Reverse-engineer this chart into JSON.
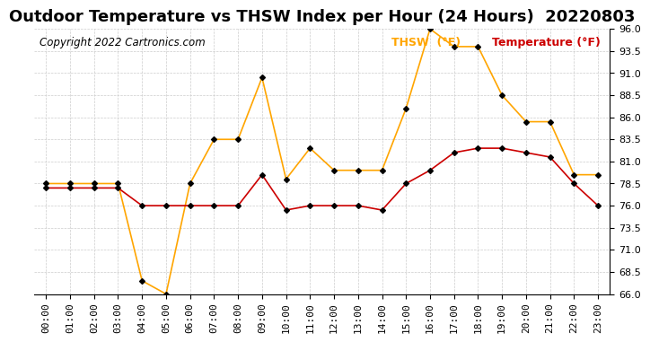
{
  "title": "Outdoor Temperature vs THSW Index per Hour (24 Hours)  20220803",
  "copyright": "Copyright 2022 Cartronics.com",
  "legend_thsw": "THSW  (°F)",
  "legend_temp": "Temperature (°F)",
  "hours": [
    "00:00",
    "01:00",
    "02:00",
    "03:00",
    "04:00",
    "05:00",
    "06:00",
    "07:00",
    "08:00",
    "09:00",
    "10:00",
    "11:00",
    "12:00",
    "13:00",
    "14:00",
    "15:00",
    "16:00",
    "17:00",
    "18:00",
    "19:00",
    "20:00",
    "21:00",
    "22:00",
    "23:00"
  ],
  "thsw": [
    78.5,
    78.5,
    78.5,
    78.5,
    67.5,
    66.0,
    78.5,
    83.5,
    83.5,
    90.5,
    79.0,
    82.5,
    80.0,
    80.0,
    80.0,
    87.0,
    96.0,
    94.0,
    94.0,
    88.5,
    85.5,
    85.5,
    79.5,
    79.5
  ],
  "temperature": [
    78.0,
    78.0,
    78.0,
    78.0,
    76.0,
    76.0,
    76.0,
    76.0,
    76.0,
    79.5,
    75.5,
    76.0,
    76.0,
    76.0,
    75.5,
    78.5,
    80.0,
    82.0,
    82.5,
    82.5,
    82.0,
    81.5,
    78.5,
    76.0
  ],
  "thsw_color": "#FFA500",
  "temp_color": "#CC0000",
  "marker_color": "#000000",
  "ylim_min": 66.0,
  "ylim_max": 96.0,
  "ytick_step": 2.5,
  "background_color": "#ffffff",
  "grid_color": "#cccccc",
  "title_fontsize": 13,
  "copyright_fontsize": 8.5,
  "legend_fontsize": 9,
  "tick_fontsize": 8
}
